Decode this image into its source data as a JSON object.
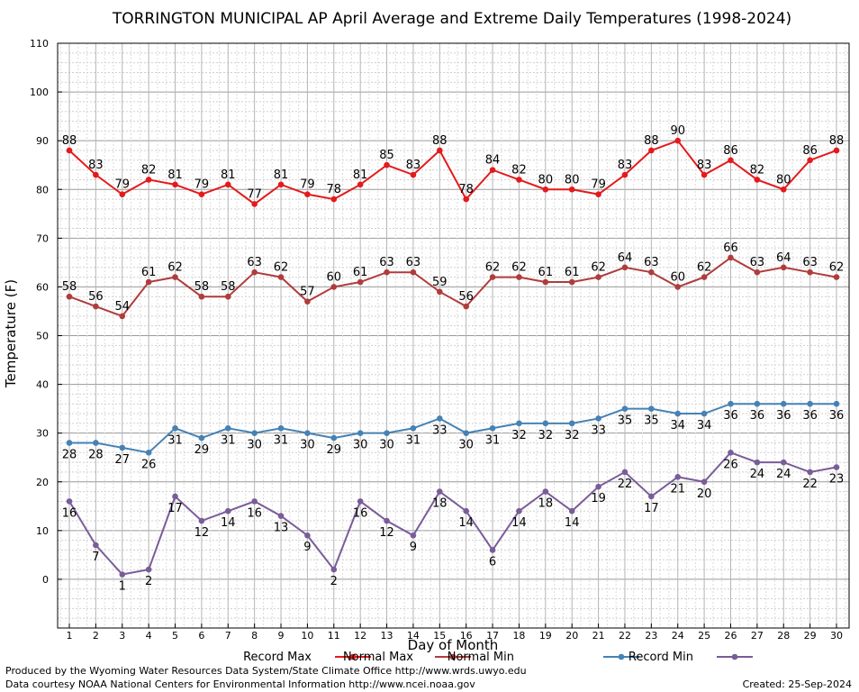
{
  "chart_data": {
    "type": "line",
    "title": "TORRINGTON MUNICIPAL AP April Average and Extreme Daily Temperatures (1998-2024)",
    "xlabel": "Day of Month",
    "ylabel": "Temperature (F)",
    "xlim": [
      1,
      30
    ],
    "ylim": [
      -10,
      110
    ],
    "yticks": [
      0,
      10,
      20,
      30,
      40,
      50,
      60,
      70,
      80,
      90,
      100,
      110
    ],
    "x": [
      1,
      2,
      3,
      4,
      5,
      6,
      7,
      8,
      9,
      10,
      11,
      12,
      13,
      14,
      15,
      16,
      17,
      18,
      19,
      20,
      21,
      22,
      23,
      24,
      25,
      26,
      27,
      28,
      29,
      30
    ],
    "grid": true,
    "legend_position": "bottom",
    "series": [
      {
        "name": "Record Max",
        "color": "#e41a1c",
        "label_pos": "above",
        "values": [
          88,
          83,
          79,
          82,
          81,
          79,
          81,
          77,
          81,
          79,
          78,
          81,
          85,
          83,
          88,
          78,
          84,
          82,
          80,
          80,
          79,
          83,
          88,
          90,
          83,
          86,
          82,
          80,
          86,
          88
        ]
      },
      {
        "name": "Normal Max",
        "color": "#b03c3c",
        "label_pos": "above",
        "values": [
          58,
          56,
          54,
          61,
          62,
          58,
          58,
          63,
          62,
          57,
          60,
          61,
          63,
          63,
          59,
          56,
          62,
          62,
          61,
          61,
          62,
          64,
          63,
          60,
          62,
          66,
          63,
          64,
          63,
          62
        ]
      },
      {
        "name": "Normal Min",
        "color": "#4682b4",
        "label_pos": "below",
        "values": [
          28,
          28,
          27,
          26,
          31,
          29,
          31,
          30,
          31,
          30,
          29,
          30,
          30,
          31,
          33,
          30,
          31,
          32,
          32,
          32,
          33,
          35,
          35,
          34,
          34,
          36,
          36,
          36,
          36,
          36
        ]
      },
      {
        "name": "Record Min",
        "color": "#7a5c99",
        "label_pos": "below",
        "values": [
          16,
          7,
          1,
          2,
          17,
          12,
          14,
          16,
          13,
          9,
          2,
          16,
          12,
          9,
          18,
          14,
          6,
          14,
          18,
          14,
          19,
          22,
          17,
          21,
          20,
          26,
          24,
          24,
          22,
          23
        ]
      }
    ]
  },
  "footer": {
    "produced_by": "Produced by the Wyoming Water Resources Data System/State Climate Office http://www.wrds.uwyo.edu",
    "data_courtesy": "Data courtesy NOAA National Centers for Environmental Information http://www.ncei.noaa.gov",
    "created": "Created:  25-Sep-2024"
  }
}
